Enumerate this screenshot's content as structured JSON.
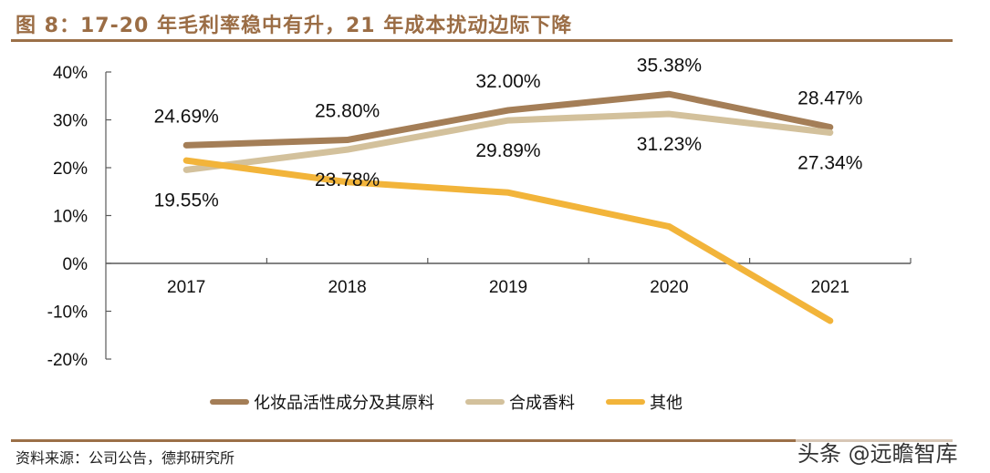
{
  "header": {
    "title": "图 8：17-20 年毛利率稳中有升，21 年成本扰动边际下降"
  },
  "footer": {
    "source": "资料来源：公司公告，德邦研究所",
    "watermark": "头条 @远瞻智库"
  },
  "chart_data": {
    "type": "line",
    "title": "17-20 年毛利率稳中有升，21 年成本扰动边际下降",
    "xlabel": "",
    "ylabel": "",
    "categories": [
      "2017",
      "2018",
      "2019",
      "2020",
      "2021"
    ],
    "ylim": [
      -20,
      40
    ],
    "yticks": [
      40,
      30,
      20,
      10,
      0,
      -10,
      -20
    ],
    "ytick_labels": [
      "40%",
      "30%",
      "20%",
      "10%",
      "0%",
      "-10%",
      "-20%"
    ],
    "grid": false,
    "legend_position": "bottom",
    "series": [
      {
        "name": "化妆品活性成分及其原料",
        "color": "#a47e57",
        "values": [
          24.69,
          25.8,
          32.0,
          35.38,
          28.47
        ],
        "labels": [
          "24.69%",
          "25.80%",
          "32.00%",
          "35.38%",
          "28.47%"
        ],
        "label_position": "above"
      },
      {
        "name": "合成香料",
        "color": "#d3c19c",
        "values": [
          19.55,
          23.78,
          29.89,
          31.23,
          27.34
        ],
        "labels": [
          "19.55%",
          "23.78%",
          "29.89%",
          "31.23%",
          "27.34%"
        ],
        "label_position": "below"
      },
      {
        "name": "其他",
        "color": "#f2b43a",
        "values": [
          21.5,
          17.0,
          14.8,
          7.7,
          -12.0
        ],
        "labels": null,
        "label_position": "none"
      }
    ]
  }
}
